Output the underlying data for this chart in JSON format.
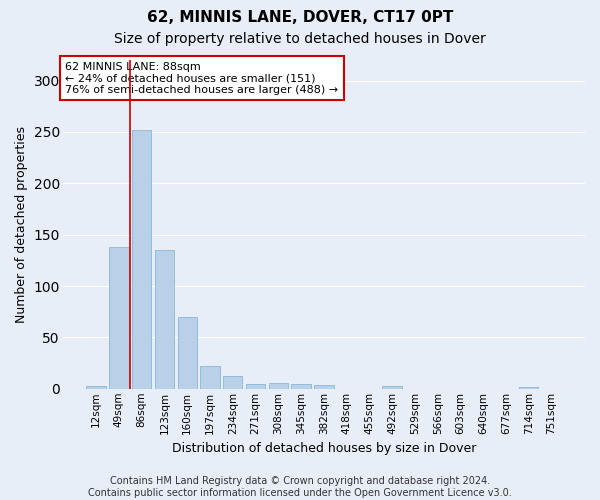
{
  "title": "62, MINNIS LANE, DOVER, CT17 0PT",
  "subtitle": "Size of property relative to detached houses in Dover",
  "xlabel": "Distribution of detached houses by size in Dover",
  "ylabel": "Number of detached properties",
  "bar_color": "#b8d0e8",
  "bar_edge_color": "#7aafd4",
  "background_color": "#e8eef8",
  "categories": [
    "12sqm",
    "49sqm",
    "86sqm",
    "123sqm",
    "160sqm",
    "197sqm",
    "234sqm",
    "271sqm",
    "308sqm",
    "345sqm",
    "382sqm",
    "418sqm",
    "455sqm",
    "492sqm",
    "529sqm",
    "566sqm",
    "603sqm",
    "640sqm",
    "677sqm",
    "714sqm",
    "751sqm"
  ],
  "values": [
    3,
    138,
    252,
    135,
    70,
    22,
    12,
    5,
    6,
    5,
    4,
    0,
    0,
    3,
    0,
    0,
    0,
    0,
    0,
    2,
    0
  ],
  "annotation_text": "62 MINNIS LANE: 88sqm\n← 24% of detached houses are smaller (151)\n76% of semi-detached houses are larger (488) →",
  "annotation_box_color": "#ffffff",
  "annotation_box_edge": "#cc0000",
  "vline_color": "#cc0000",
  "vline_x": 1.5,
  "ylim": [
    0,
    320
  ],
  "yticks": [
    0,
    50,
    100,
    150,
    200,
    250,
    300
  ],
  "footer": "Contains HM Land Registry data © Crown copyright and database right 2024.\nContains public sector information licensed under the Open Government Licence v3.0.",
  "grid_color": "#ffffff",
  "title_fontsize": 11,
  "subtitle_fontsize": 10,
  "tick_fontsize": 7.5,
  "ylabel_fontsize": 9,
  "xlabel_fontsize": 9
}
